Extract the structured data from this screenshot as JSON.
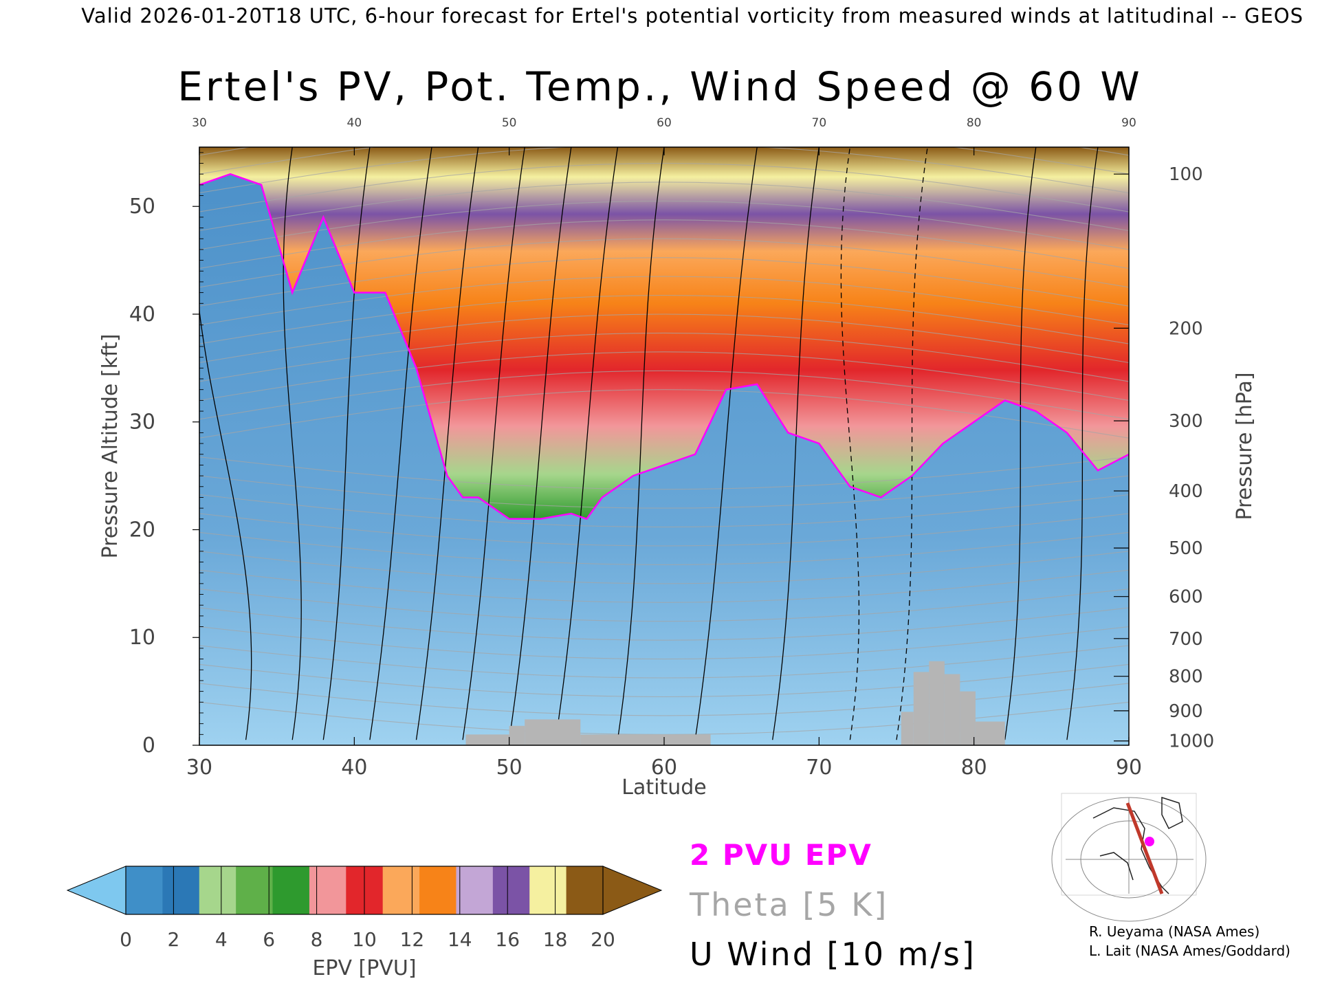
{
  "header": "Valid 2026-01-20T18 UTC, 6-hour forecast for Ertel's potential vorticity from measured winds at latitudinal -- GEOS",
  "chart_data": {
    "type": "heatmap",
    "title": "Ertel's PV, Pot. Temp., Wind Speed @ 60 W",
    "xlabel": "Latitude",
    "ylabel": "Pressure Altitude [kft]",
    "y2label": "Pressure [hPa]",
    "xlim": [
      30,
      90
    ],
    "ylim": [
      0,
      55.5
    ],
    "x_ticks": [
      "30",
      "40",
      "50",
      "60",
      "70",
      "80",
      "90"
    ],
    "y_ticks": [
      "0",
      "10",
      "20",
      "30",
      "40",
      "50"
    ],
    "pressure_ticks": [
      {
        "label": "100",
        "kft": 53.0
      },
      {
        "label": "200",
        "kft": 38.7
      },
      {
        "label": "300",
        "kft": 30.1
      },
      {
        "label": "400",
        "kft": 23.6
      },
      {
        "label": "500",
        "kft": 18.3
      },
      {
        "label": "600",
        "kft": 13.8
      },
      {
        "label": "700",
        "kft": 9.9
      },
      {
        "label": "800",
        "kft": 6.4
      },
      {
        "label": "900",
        "kft": 3.2
      },
      {
        "label": "1000",
        "kft": 0.4
      }
    ],
    "pv2_boundary": {
      "lat": [
        30,
        32,
        34,
        36,
        38,
        40,
        42,
        44,
        45,
        46,
        47,
        48,
        50,
        52,
        54,
        55,
        56,
        58,
        60,
        62,
        64,
        66,
        68,
        70,
        72,
        74,
        76,
        78,
        80,
        82,
        84,
        86,
        88,
        90
      ],
      "kft": [
        52,
        53,
        52,
        42,
        49,
        42,
        42,
        35,
        30,
        25,
        23,
        23,
        21,
        21,
        21.5,
        21,
        23,
        25,
        26,
        27,
        33,
        33.5,
        29,
        28,
        24,
        23,
        25,
        28,
        30,
        32,
        31,
        29,
        25.5,
        27
      ]
    },
    "colorbar": {
      "label": "EPV [PVU]",
      "ticks": [
        "0",
        "2",
        "4",
        "6",
        "8",
        "10",
        "12",
        "14",
        "16",
        "18",
        "20"
      ],
      "colors": [
        "#3f8fc8",
        "#2b78b6",
        "#a6d68c",
        "#5fb049",
        "#2e9a2e",
        "#f2969a",
        "#e2262b",
        "#fba85a",
        "#f78318",
        "#c3a6d6",
        "#7b53a6",
        "#f5f0a0",
        "#8b5a16"
      ],
      "below_color": "#7ec8ef",
      "above_color": "#8b5a16"
    },
    "legend": [
      {
        "label": "2 PVU EPV",
        "color": "#ff00ff"
      },
      {
        "label": "Theta [5 K]",
        "color": "#a6a6a6"
      },
      {
        "label": "U Wind [10 m/s]",
        "color": "#000000"
      }
    ],
    "terrain": [
      {
        "lat0": 47.2,
        "lat1": 50.0,
        "kft": 1.0
      },
      {
        "lat0": 50.0,
        "lat1": 51.0,
        "kft": 1.8
      },
      {
        "lat0": 51.0,
        "lat1": 54.6,
        "kft": 2.4
      },
      {
        "lat0": 54.6,
        "lat1": 63.0,
        "kft": 1.0
      },
      {
        "lat0": 75.3,
        "lat1": 76.1,
        "kft": 3.1
      },
      {
        "lat0": 76.1,
        "lat1": 77.1,
        "kft": 6.8
      },
      {
        "lat0": 77.1,
        "lat1": 78.1,
        "kft": 7.8
      },
      {
        "lat0": 78.1,
        "lat1": 79.1,
        "kft": 6.6
      },
      {
        "lat0": 79.1,
        "lat1": 80.1,
        "kft": 5.0
      },
      {
        "lat0": 80.1,
        "lat1": 82.0,
        "kft": 2.2
      }
    ]
  },
  "credits": [
    "R. Ueyama (NASA Ames)",
    "L. Lait (NASA Ames/Goddard)"
  ]
}
